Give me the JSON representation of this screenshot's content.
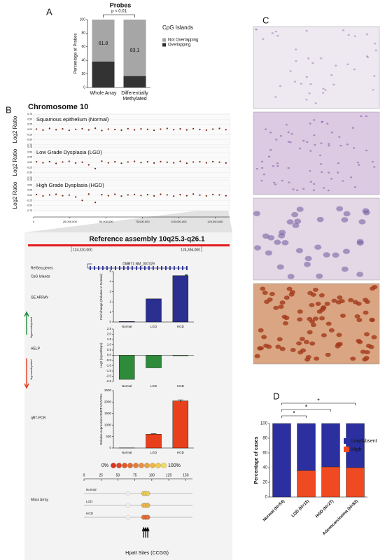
{
  "panel_labels": [
    "A",
    "B",
    "C",
    "D"
  ],
  "chart_data": [
    {
      "type": "stacked-bar",
      "title": "Probes",
      "annotation": "p < 0.01",
      "y_label": "Percentage of Probes",
      "legend_title": "CpG Islands",
      "categories": [
        "Whole Array",
        "Differentially Methylated"
      ],
      "series": [
        {
          "name": "Overlapping",
          "color": "#333333",
          "values": [
            38.2,
            16.9
          ]
        },
        {
          "name": "Not Overlapping",
          "color": "#a6a6a6",
          "values": [
            61.8,
            83.1
          ],
          "show_values": true
        }
      ],
      "ylim": [
        0,
        100
      ],
      "yticks": [
        0,
        20,
        40,
        60,
        80,
        100
      ]
    },
    {
      "type": "scatter",
      "title": "Chromosome 10",
      "y_label": "Log2 Ratio",
      "x": [
        2000000,
        6500000,
        11000000,
        15500000,
        20000000,
        24500000,
        29000000,
        33500000,
        38000000,
        42500000,
        47000000,
        51500000,
        56000000,
        60500000,
        65000000,
        69500000,
        74000000,
        78500000,
        83000000,
        87500000,
        92000000,
        96500000,
        101000000,
        105500000,
        110000000,
        114500000,
        119000000,
        123500000,
        128000000,
        132500000
      ],
      "series": [
        {
          "name": "Squamous epithelium (Normal)",
          "color": "#7a2412",
          "values": [
            0.02,
            -0.03,
            0.05,
            -0.01,
            0.03,
            -0.04,
            0.01,
            0.04,
            -0.02,
            0.06,
            -0.05,
            0.02,
            0.0,
            -0.03,
            0.04,
            -0.02,
            0.03,
            0.01,
            -0.04,
            0.02,
            0.05,
            -0.01,
            0.03,
            -0.02,
            0.04,
            0.0,
            -0.03,
            0.02,
            0.05,
            -0.01
          ]
        },
        {
          "name": "Low Grade Dysplasia (LGD)",
          "color": "#7a2412",
          "values": [
            0.03,
            -0.02,
            0.04,
            -0.05,
            0.02,
            0.05,
            -0.03,
            0.01,
            -0.12,
            -0.3,
            0.06,
            -0.02,
            0.03,
            -0.04,
            0.02,
            0.05,
            -0.01,
            0.03,
            -0.03,
            0.04,
            0.01,
            -0.02,
            0.05,
            -0.04,
            0.02,
            0.03,
            -0.02,
            0.04,
            0.01,
            -0.03
          ]
        },
        {
          "name": "High Grade Dysplasia (HGD)",
          "color": "#7a2412",
          "values": [
            0.04,
            -0.03,
            0.02,
            0.05,
            -0.02,
            0.01,
            -0.08,
            -0.25,
            0.06,
            -0.35,
            0.03,
            -0.02,
            0.05,
            -0.04,
            0.02,
            0.04,
            -0.01,
            0.03,
            -0.03,
            0.05,
            0.02,
            -0.04,
            0.03,
            -0.02,
            0.06,
            0.01,
            -0.03,
            0.04,
            0.02,
            -0.02
          ]
        }
      ],
      "xlim": [
        0,
        135000000
      ],
      "xticks": [
        0,
        {
          "value": 25000000,
          "label": "25,000,000"
        },
        {
          "value": 50000000,
          "label": "50,000,000"
        },
        {
          "value": 75000000,
          "label": "75,000,000"
        },
        {
          "value": 100000000,
          "label": "100,000,000"
        },
        {
          "value": 125000000,
          "label": "125,000,000"
        }
      ],
      "ylim": [
        -0.75,
        0.75
      ],
      "yticks": [
        0.75,
        {
          "value": 0.5,
          "label": "0.50"
        },
        0.25,
        {
          "value": 0,
          "label": "0.00"
        },
        -0.25,
        {
          "value": -0.5,
          "label": "-0.50"
        },
        -0.75
      ]
    },
    {
      "type": "bar",
      "y_label": "Fold change (Relative to Normal)",
      "categories": [
        "Normal",
        "LGD",
        "HGD"
      ],
      "values": [
        0.05,
        2.3,
        4.6
      ],
      "color": "#2b2f8f",
      "ylim": [
        0,
        5
      ],
      "yticks": [
        0,
        1,
        2,
        3,
        4,
        5
      ]
    },
    {
      "type": "bar",
      "y_label": "Log2 (HpaII/MspI)",
      "categories": [
        "Normal",
        "LGD",
        "HGD"
      ],
      "values": [
        -2.3,
        -1.2,
        -0.05
      ],
      "color": "#2e8b3a",
      "ylim": [
        -2.5,
        2.5
      ],
      "yticks": [
        -2.5,
        {
          "value": -2,
          "label": "-2.0"
        },
        -1.5,
        {
          "value": -1,
          "label": "-1.0"
        },
        -0.5,
        {
          "value": 0,
          "label": "0.0"
        },
        0.5,
        {
          "value": 1,
          "label": "1.0"
        },
        1.5,
        {
          "value": 2,
          "label": "2.0"
        },
        2.5
      ]
    },
    {
      "type": "bar",
      "y_label": "Relative expression DMBT1/GAPDH",
      "categories": [
        "Normal",
        "LGD",
        "HGD"
      ],
      "values": [
        5,
        600,
        2050
      ],
      "errors": [
        0,
        20,
        50
      ],
      "color": "#e8401c",
      "ylim": [
        0,
        2500
      ],
      "yticks": [
        0,
        500,
        1000,
        1500,
        2000,
        2500
      ]
    },
    {
      "type": "dot-track",
      "scale_low": "0%",
      "scale_high": "100%",
      "x_label": "HpaII Sites (CCGG)",
      "x": [
        65,
        88,
        91,
        94
      ],
      "series": [
        {
          "name": "Normal",
          "values": [
            null,
            90,
            90,
            90
          ]
        },
        {
          "name": "LGD",
          "values": [
            null,
            80,
            80,
            75
          ]
        },
        {
          "name": "HGD",
          "values": [
            null,
            40,
            30,
            35
          ]
        }
      ],
      "xlim": [
        0,
        160
      ],
      "xticks": [
        0,
        25,
        50,
        75,
        100,
        125,
        150
      ]
    },
    {
      "type": "stacked-bar",
      "y_label": "Percentage of cases",
      "annotations": [
        "*",
        "*",
        "*"
      ],
      "categories": [
        "Normal (N=54)",
        "LGD (N=11)",
        "HGD (N=27)",
        "Adenocarcinoma (N=82)"
      ],
      "series": [
        {
          "name": "High",
          "color": "#f04a23",
          "values": [
            0,
            36,
            41,
            40
          ]
        },
        {
          "name": "Low/Absent",
          "color": "#2b2f9f",
          "values": [
            100,
            64,
            59,
            60
          ]
        }
      ],
      "ylim": [
        0,
        100
      ],
      "yticks": [
        0,
        20,
        40,
        60,
        80,
        100
      ]
    }
  ],
  "zoom": {
    "title": "Reference assembly 10q25.3-q26.1",
    "coord_start": "124,310,000",
    "coord_end": "124,394,000",
    "gene": "DMBT1  NM_007329",
    "track_labels": [
      "RefSeq genes",
      "CpG Islands",
      "GE ARRAY",
      "HELP",
      "qRT-PCR",
      "Mass Array"
    ],
    "help_up": "Hypermethylated",
    "help_down": "Hypomethylated"
  }
}
